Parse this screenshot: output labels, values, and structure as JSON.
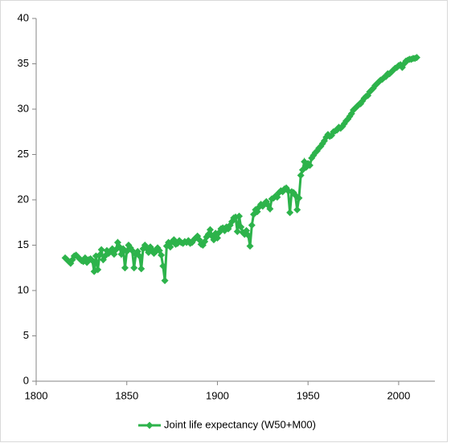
{
  "chart_data": {
    "type": "line",
    "x": [
      1816,
      1817,
      1818,
      1819,
      1820,
      1821,
      1822,
      1823,
      1824,
      1825,
      1826,
      1827,
      1828,
      1829,
      1830,
      1831,
      1832,
      1833,
      1834,
      1835,
      1836,
      1837,
      1838,
      1839,
      1840,
      1841,
      1842,
      1843,
      1844,
      1845,
      1846,
      1847,
      1848,
      1849,
      1850,
      1851,
      1852,
      1853,
      1854,
      1855,
      1856,
      1857,
      1858,
      1859,
      1860,
      1861,
      1862,
      1863,
      1864,
      1865,
      1866,
      1867,
      1868,
      1869,
      1870,
      1871,
      1872,
      1873,
      1874,
      1875,
      1876,
      1877,
      1878,
      1879,
      1880,
      1881,
      1882,
      1883,
      1884,
      1885,
      1886,
      1887,
      1888,
      1889,
      1890,
      1891,
      1892,
      1893,
      1894,
      1895,
      1896,
      1897,
      1898,
      1899,
      1900,
      1901,
      1902,
      1903,
      1904,
      1905,
      1906,
      1907,
      1908,
      1909,
      1910,
      1911,
      1912,
      1913,
      1914,
      1915,
      1916,
      1917,
      1918,
      1919,
      1920,
      1921,
      1922,
      1923,
      1924,
      1925,
      1926,
      1927,
      1928,
      1929,
      1930,
      1931,
      1932,
      1933,
      1934,
      1935,
      1936,
      1937,
      1938,
      1939,
      1940,
      1941,
      1942,
      1943,
      1944,
      1945,
      1946,
      1947,
      1948,
      1949,
      1950,
      1951,
      1952,
      1953,
      1954,
      1955,
      1956,
      1957,
      1958,
      1959,
      1960,
      1961,
      1962,
      1963,
      1964,
      1965,
      1966,
      1967,
      1968,
      1969,
      1970,
      1971,
      1972,
      1973,
      1974,
      1975,
      1976,
      1977,
      1978,
      1979,
      1980,
      1981,
      1982,
      1983,
      1984,
      1985,
      1986,
      1987,
      1988,
      1989,
      1990,
      1991,
      1992,
      1993,
      1994,
      1995,
      1996,
      1997,
      1998,
      1999,
      2000,
      2001,
      2002,
      2003,
      2004,
      2005,
      2006,
      2007,
      2008,
      2009,
      2010
    ],
    "series": [
      {
        "name": "Joint life expectancy (W50+M00)",
        "color": "#2db34b",
        "values": [
          13.6,
          13.4,
          13.2,
          13.0,
          13.4,
          13.8,
          13.9,
          13.7,
          13.5,
          13.3,
          13.2,
          13.6,
          13.1,
          13.4,
          13.5,
          13.3,
          12.1,
          13.8,
          12.3,
          13.9,
          14.5,
          13.4,
          13.8,
          14.4,
          14.1,
          14.3,
          14.6,
          14.0,
          14.5,
          15.3,
          14.8,
          14.0,
          14.6,
          12.5,
          14.3,
          15.0,
          14.7,
          14.4,
          12.5,
          14.0,
          14.3,
          13.8,
          12.4,
          14.6,
          15.0,
          14.6,
          14.2,
          14.8,
          14.5,
          14.1,
          14.3,
          14.7,
          14.4,
          13.9,
          12.7,
          11.1,
          14.9,
          15.3,
          14.8,
          15.4,
          15.6,
          15.1,
          15.2,
          15.5,
          15.3,
          15.2,
          15.4,
          15.3,
          15.5,
          15.2,
          15.3,
          15.6,
          15.8,
          16.0,
          15.6,
          15.1,
          15.0,
          15.4,
          15.9,
          16.2,
          16.7,
          16.0,
          15.6,
          16.3,
          15.8,
          16.4,
          16.8,
          16.9,
          16.6,
          17.0,
          16.8,
          17.2,
          17.6,
          18.0,
          18.1,
          16.5,
          18.2,
          17.0,
          16.4,
          16.2,
          16.6,
          16.1,
          14.9,
          17.2,
          18.4,
          18.9,
          18.7,
          19.2,
          19.5,
          19.3,
          19.6,
          19.8,
          19.4,
          19.0,
          20.1,
          20.2,
          20.4,
          20.3,
          20.8,
          21.0,
          20.9,
          21.2,
          21.3,
          21.0,
          18.6,
          20.9,
          20.8,
          20.5,
          18.9,
          20.2,
          22.7,
          23.3,
          24.2,
          23.6,
          24.0,
          23.8,
          24.6,
          24.9,
          25.2,
          25.4,
          25.7,
          25.9,
          26.2,
          26.5,
          26.9,
          27.2,
          27.0,
          27.1,
          27.5,
          27.6,
          27.7,
          28.0,
          27.9,
          28.1,
          28.4,
          28.7,
          28.9,
          29.2,
          29.5,
          29.9,
          30.1,
          30.3,
          30.5,
          30.6,
          30.9,
          31.2,
          31.4,
          31.5,
          31.9,
          32.1,
          32.3,
          32.6,
          32.8,
          33.0,
          33.2,
          33.3,
          33.5,
          33.6,
          33.9,
          33.9,
          34.1,
          34.3,
          34.5,
          34.6,
          34.8,
          34.9,
          34.6,
          35.0,
          35.3,
          35.4,
          35.5,
          35.5,
          35.6,
          35.6,
          35.7
        ]
      }
    ],
    "xlim": [
      1800,
      2020
    ],
    "xticks": [
      1800,
      1850,
      1900,
      1950,
      2000
    ],
    "ylim": [
      0,
      40
    ],
    "yticks": [
      0,
      5,
      10,
      15,
      20,
      25,
      30,
      35,
      40
    ],
    "grid": false,
    "legend": "bottom"
  }
}
